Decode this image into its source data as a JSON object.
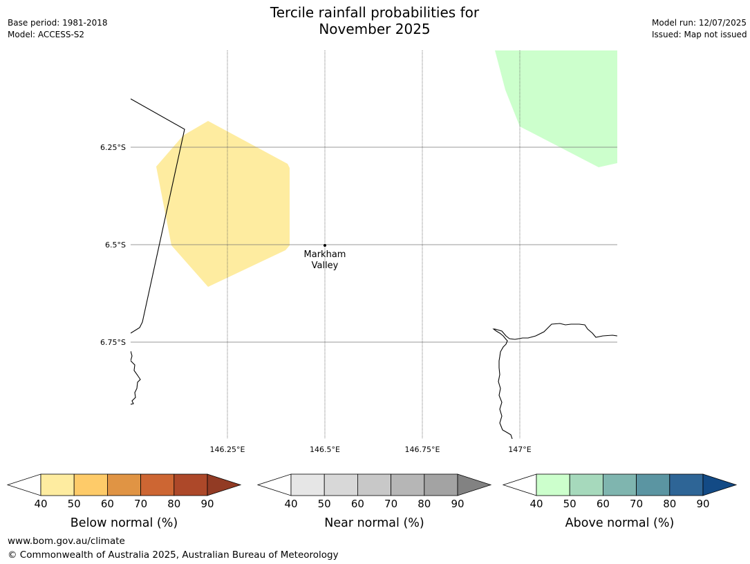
{
  "header": {
    "title_line1": "Tercile rainfall probabilities for",
    "title_line2": "November 2025",
    "base_period": "Base period: 1981-2018",
    "model": "Model: ACCESS-S2",
    "model_run": "Model run: 12/07/2025",
    "issued": "Issued: Map not issued"
  },
  "map": {
    "lat_labels": [
      "6.25°S",
      "6.5°S",
      "6.75°S"
    ],
    "lon_labels": [
      "146.25°E",
      "146.5°E",
      "146.75°E",
      "147°E"
    ],
    "place": {
      "name_line1": "Markham",
      "name_line2": "Valley"
    },
    "regions": [
      {
        "category": "Below normal",
        "band": "40–50",
        "color": "#feeca0"
      },
      {
        "category": "Above normal",
        "band": "40–50",
        "color": "#ccffcc"
      }
    ]
  },
  "legends": [
    {
      "title": "Below normal (%)",
      "ticks": [
        "40",
        "50",
        "60",
        "70",
        "80",
        "90"
      ],
      "colors": [
        "#feeca0",
        "#fecb69",
        "#e09444",
        "#cd6633",
        "#ad4829"
      ],
      "extend_color": "#923b24"
    },
    {
      "title": "Near normal (%)",
      "ticks": [
        "40",
        "50",
        "60",
        "70",
        "80",
        "90"
      ],
      "colors": [
        "#e6e6e6",
        "#d8d8d8",
        "#c8c8c8",
        "#b6b6b6",
        "#a3a3a3"
      ],
      "extend_color": "#828282"
    },
    {
      "title": "Above normal (%)",
      "ticks": [
        "40",
        "50",
        "60",
        "70",
        "80",
        "90"
      ],
      "colors": [
        "#ccffcc",
        "#a6d9bc",
        "#7fb5af",
        "#5b95a2",
        "#2e6596"
      ],
      "extend_color": "#134a85"
    }
  ],
  "footer": {
    "url": "www.bom.gov.au/climate",
    "copyright": "© Commonwealth of Australia 2025, Australian Bureau of Meteorology"
  }
}
